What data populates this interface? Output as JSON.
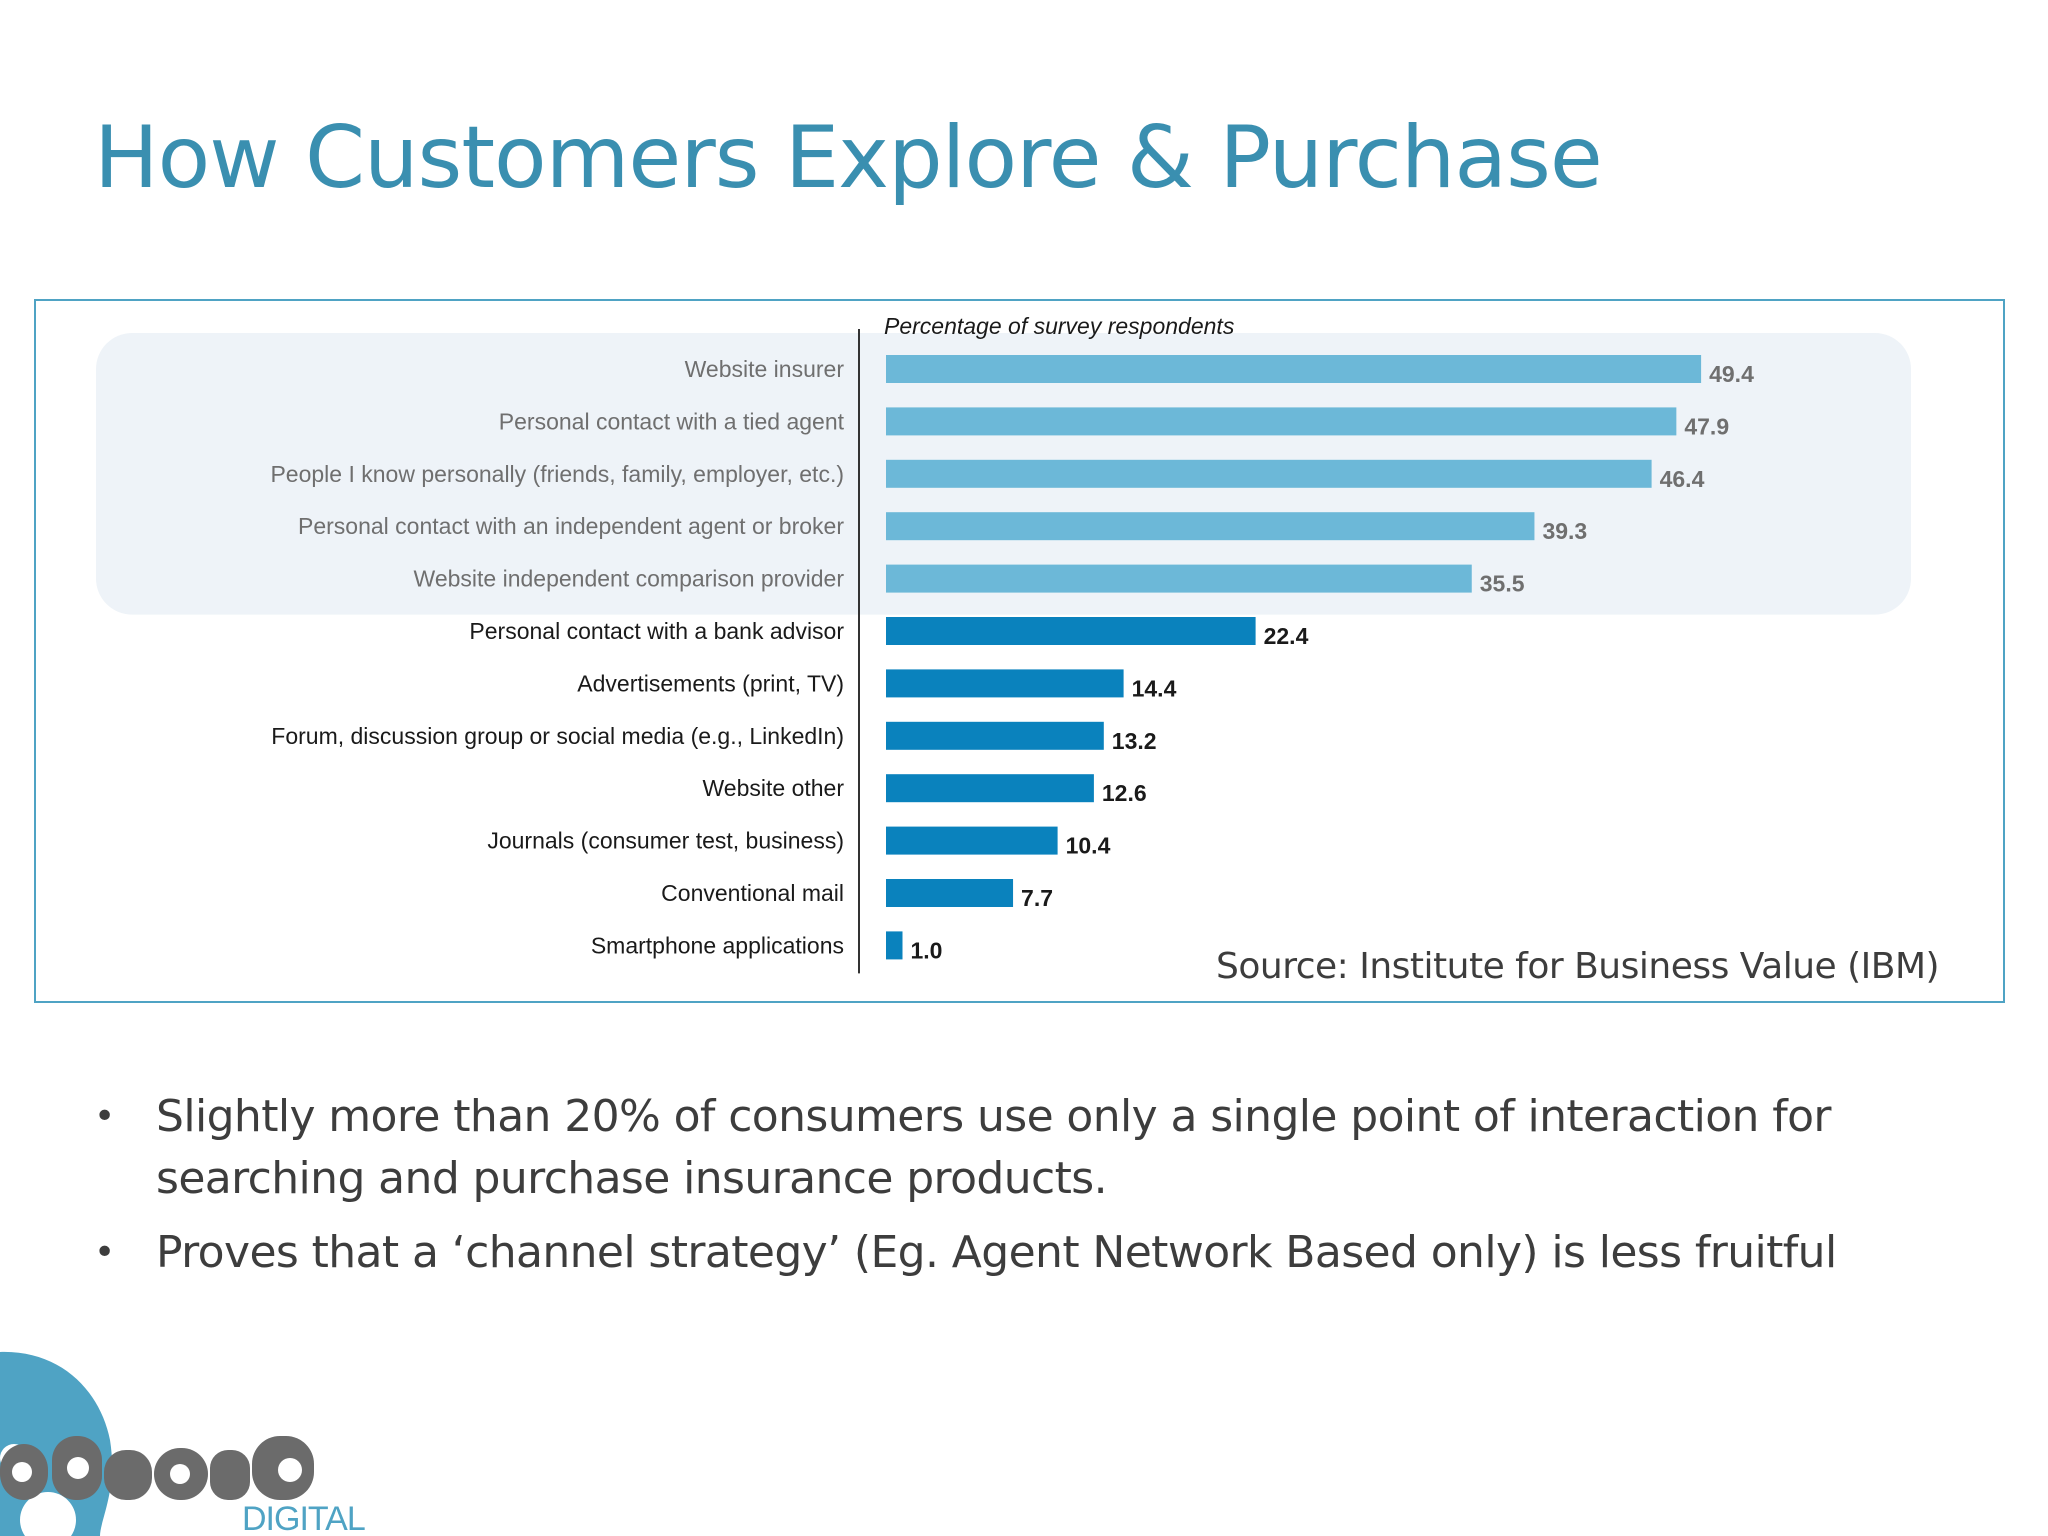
{
  "slide": {
    "title": "How Customers Explore & Purchase",
    "source": "Source: Institute for Business Value (IBM)",
    "bullets": [
      "Slightly more than 20% of consumers use only a single point of interaction for searching and purchase insurance products.",
      "Proves that  a ‘channel strategy’ (Eg. Agent Network Based only) is less fruitful"
    ],
    "bullet_glyph": "•",
    "logo": {
      "wordmark": "absorb",
      "subtext": "DIGITAL"
    }
  },
  "chart_data": {
    "type": "bar",
    "orientation": "horizontal",
    "title": "",
    "axis_caption": "Percentage of survey respondents",
    "categories": [
      "Website insurer",
      "Personal contact with a tied agent",
      "People I know personally (friends, family, employer, etc.)",
      "Personal contact with an independent agent or broker",
      "Website independent comparison provider",
      "Personal contact with a bank advisor",
      "Advertisements (print, TV)",
      "Forum, discussion group or social media (e.g., LinkedIn)",
      "Website other",
      "Journals (consumer test, business)",
      "Conventional mail",
      "Smartphone applications"
    ],
    "values": [
      49.4,
      47.9,
      46.4,
      39.3,
      35.5,
      22.4,
      14.4,
      13.2,
      12.6,
      10.4,
      7.7,
      1.0
    ],
    "value_labels": [
      "49.4",
      "47.9",
      "46.4",
      "39.3",
      "35.5",
      "22.4",
      "14.4",
      "13.2",
      "12.6",
      "10.4",
      "7.7",
      "1.0"
    ],
    "highlighted_top_count": 5,
    "xlim": [
      0,
      60
    ],
    "grid": false,
    "legend": "none",
    "colors": {
      "highlight_bar": "#6cb8d8",
      "standard_bar": "#0a82bd",
      "highlight_band": "#eef3f8",
      "highlight_label": "#6f6f6f",
      "standard_label": "#1a1a1a",
      "frame": "#4fa3c4",
      "title": "#3a8fb0"
    }
  }
}
